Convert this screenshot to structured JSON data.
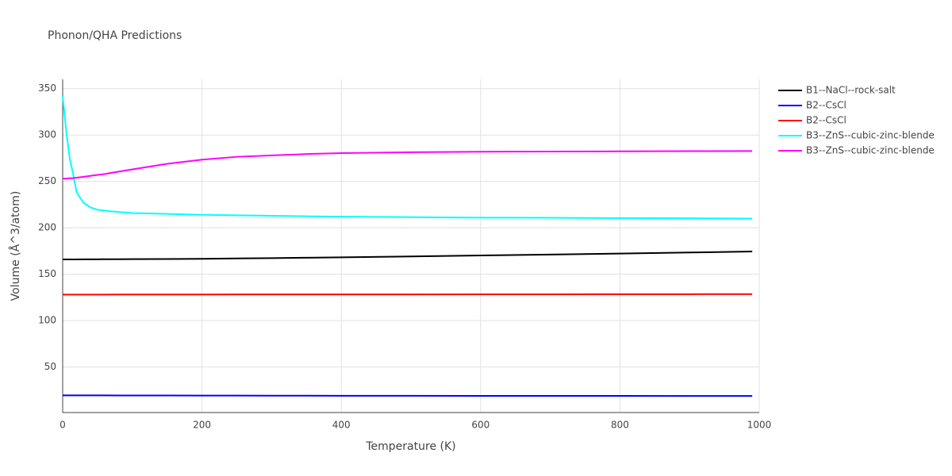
{
  "chart_data": {
    "type": "line",
    "title": "Phonon/QHA Predictions",
    "x_label": "Temperature (K)",
    "y_label": "Volume (Å^3/atom)",
    "x": [
      0,
      5,
      10,
      15,
      20,
      30,
      40,
      50,
      60,
      80,
      100,
      150,
      200,
      250,
      300,
      350,
      400,
      500,
      600,
      700,
      800,
      900,
      990
    ],
    "series": [
      {
        "name": "B1--NaCl--rock-salt",
        "color": "#000000",
        "values": [
          166,
          166,
          166,
          166,
          166,
          166.1,
          166.1,
          166.1,
          166.2,
          166.2,
          166.3,
          166.4,
          166.6,
          167,
          167.4,
          167.8,
          168.2,
          169.2,
          170.2,
          171.2,
          172.3,
          173.4,
          174.5
        ]
      },
      {
        "name": "B2--CsCl",
        "color": "#0000ff",
        "values": [
          19.5,
          19.5,
          19.5,
          19.5,
          19.5,
          19.5,
          19.5,
          19.5,
          19.5,
          19.4,
          19.4,
          19.4,
          19.3,
          19.3,
          19.2,
          19.2,
          19.1,
          19.1,
          19,
          18.9,
          18.9,
          18.8,
          18.8
        ]
      },
      {
        "name": "B2--CsCl",
        "color": "#ff0000",
        "values": [
          128,
          128,
          128,
          128,
          128,
          128,
          128,
          128,
          128,
          128.1,
          128.1,
          128.1,
          128.1,
          128.2,
          128.2,
          128.2,
          128.3,
          128.3,
          128.4,
          128.4,
          128.5,
          128.5,
          128.6
        ]
      },
      {
        "name": "B3--ZnS--cubic-zinc-blende",
        "color": "#00ffff",
        "values": [
          342,
          305,
          275,
          258,
          238,
          227,
          222,
          219.5,
          218.5,
          217,
          216,
          215,
          214,
          213.5,
          213,
          212.5,
          212,
          211.5,
          211,
          210.8,
          210.5,
          210.3,
          210
        ]
      },
      {
        "name": "B3--ZnS--cubic-zinc-blende",
        "color": "#ff00ff",
        "values": [
          253,
          253,
          253.5,
          253.5,
          254,
          255,
          256,
          257,
          258,
          260.5,
          263,
          269,
          273.5,
          276.5,
          278,
          279.5,
          280.5,
          281.5,
          282,
          282.2,
          282.4,
          282.6,
          282.7
        ]
      }
    ],
    "xlim": [
      0,
      1000
    ],
    "xticks": [
      0,
      200,
      400,
      600,
      800,
      1000
    ],
    "ylim": [
      1,
      360
    ],
    "yticks": [
      50,
      100,
      150,
      200,
      250,
      300,
      350
    ],
    "grid": true,
    "legend": "right"
  }
}
